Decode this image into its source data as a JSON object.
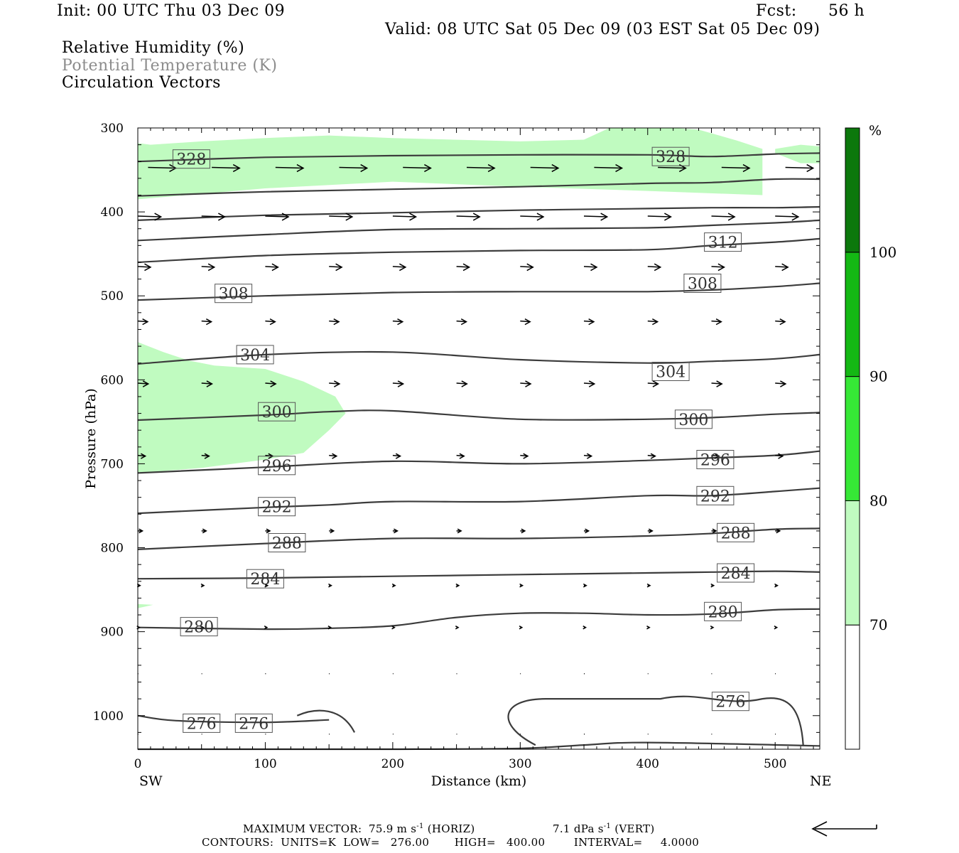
{
  "header": {
    "init": "Init: 00 UTC Thu 03 Dec 09",
    "fcst_label": "Fcst:",
    "fcst_value": "56 h",
    "valid": "Valid: 08 UTC Sat 05 Dec 09 (03 EST Sat 05 Dec 09)"
  },
  "fields": {
    "rh": "Relative Humidity (%)",
    "theta": "Potential Temperature (K)",
    "vectors": "Circulation Vectors"
  },
  "footer": {
    "max_vector_label": "MAXIMUM VECTOR:",
    "max_vector_horiz": "75.9 m s",
    "horiz_tag": "(HORIZ)",
    "max_vector_vert": "7.1 dPa s",
    "vert_tag": "(VERT)",
    "exponent": "-1",
    "contours_line": "CONTOURS:  UNITS=K  LOW=   276.00       HIGH=   400.00        INTERVAL=     4.0000"
  },
  "colors": {
    "rh_70": "#c0fbc0",
    "rh_80": "#36e836",
    "rh_90": "#14b814",
    "rh_100": "#0c780c",
    "contour": "#3c3c3c"
  },
  "chart_data": {
    "type": "cross-section",
    "xlabel": "Distance (km)",
    "ylabel": "Pressure (hPa)",
    "xlim": [
      0,
      535
    ],
    "ylim": [
      1040,
      300
    ],
    "y_scale": "linear (pressure, inverted)",
    "x_ticks": [
      0,
      100,
      200,
      300,
      400,
      500
    ],
    "y_ticks": [
      300,
      400,
      500,
      600,
      700,
      800,
      900,
      1000
    ],
    "x_end_labels": {
      "left": "SW",
      "right": "NE"
    },
    "colorbar": {
      "unit_label": "%",
      "levels": [
        70,
        80,
        90,
        100
      ],
      "colors": [
        "#ffffff",
        "#c0fbc0",
        "#36e836",
        "#14b814",
        "#0c780c"
      ]
    },
    "theta_contours": [
      {
        "value": 276,
        "label": "276",
        "points": [
          [
            0,
            1040
          ],
          [
            100,
            1040
          ],
          [
            200,
            1040
          ],
          [
            300,
            1039
          ],
          [
            350,
            1035
          ],
          [
            400,
            1032
          ],
          [
            535,
            1036
          ]
        ]
      },
      {
        "value": 276,
        "label": "276",
        "points": [
          [
            0,
            1000
          ],
          [
            30,
            1006
          ],
          [
            100,
            1008
          ],
          [
            150,
            1005
          ]
        ]
      },
      {
        "value": 280,
        "label": "280",
        "points": [
          [
            0,
            895
          ],
          [
            100,
            897
          ],
          [
            150,
            896
          ],
          [
            200,
            893
          ],
          [
            250,
            883
          ],
          [
            300,
            878
          ],
          [
            350,
            878
          ],
          [
            400,
            880
          ],
          [
            450,
            879
          ],
          [
            500,
            874
          ],
          [
            535,
            873
          ]
        ]
      },
      {
        "value": 284,
        "label": "284",
        "points": [
          [
            0,
            837
          ],
          [
            100,
            836
          ],
          [
            200,
            834
          ],
          [
            300,
            832
          ],
          [
            400,
            830
          ],
          [
            450,
            829
          ],
          [
            500,
            828
          ],
          [
            535,
            829
          ]
        ]
      },
      {
        "value": 288,
        "label": "288",
        "points": [
          [
            0,
            802
          ],
          [
            100,
            795
          ],
          [
            200,
            789
          ],
          [
            300,
            789
          ],
          [
            400,
            786
          ],
          [
            450,
            783
          ],
          [
            500,
            778
          ],
          [
            535,
            777
          ]
        ]
      },
      {
        "value": 292,
        "label": "292",
        "points": [
          [
            0,
            759
          ],
          [
            100,
            752
          ],
          [
            150,
            749
          ],
          [
            200,
            745
          ],
          [
            300,
            745
          ],
          [
            400,
            738
          ],
          [
            450,
            738
          ],
          [
            500,
            733
          ],
          [
            535,
            729
          ]
        ]
      },
      {
        "value": 296,
        "label": "296",
        "points": [
          [
            0,
            711
          ],
          [
            100,
            704
          ],
          [
            200,
            697
          ],
          [
            300,
            700
          ],
          [
            400,
            696
          ],
          [
            450,
            693
          ],
          [
            500,
            690
          ],
          [
            535,
            685
          ]
        ]
      },
      {
        "value": 300,
        "label": "300",
        "points": [
          [
            0,
            648
          ],
          [
            100,
            642
          ],
          [
            150,
            638
          ],
          [
            200,
            637
          ],
          [
            300,
            647
          ],
          [
            400,
            647
          ],
          [
            450,
            645
          ],
          [
            500,
            641
          ],
          [
            535,
            639
          ]
        ]
      },
      {
        "value": 304,
        "label": "304",
        "points": [
          [
            0,
            581
          ],
          [
            100,
            570
          ],
          [
            200,
            567
          ],
          [
            300,
            576
          ],
          [
            400,
            580
          ],
          [
            450,
            578
          ],
          [
            500,
            575
          ],
          [
            535,
            570
          ]
        ]
      },
      {
        "value": 308,
        "label": "308",
        "points": [
          [
            0,
            505
          ],
          [
            100,
            500
          ],
          [
            200,
            496
          ],
          [
            300,
            495
          ],
          [
            400,
            495
          ],
          [
            450,
            493
          ],
          [
            500,
            489
          ],
          [
            535,
            485
          ]
        ]
      },
      {
        "value": 312,
        "label": "312",
        "points": [
          [
            0,
            460
          ],
          [
            100,
            452
          ],
          [
            200,
            448
          ],
          [
            300,
            446
          ],
          [
            400,
            445
          ],
          [
            450,
            440
          ],
          [
            500,
            436
          ],
          [
            535,
            432
          ]
        ]
      },
      {
        "value": 316,
        "label": "",
        "points": [
          [
            0,
            434
          ],
          [
            100,
            427
          ],
          [
            200,
            421
          ],
          [
            300,
            420
          ],
          [
            400,
            419
          ],
          [
            450,
            416
          ],
          [
            500,
            413
          ],
          [
            535,
            410
          ]
        ]
      },
      {
        "value": 320,
        "label": "",
        "points": [
          [
            0,
            410
          ],
          [
            100,
            404
          ],
          [
            200,
            401
          ],
          [
            300,
            398
          ],
          [
            400,
            396
          ],
          [
            450,
            395
          ],
          [
            500,
            395
          ],
          [
            535,
            394
          ]
        ]
      },
      {
        "value": 324,
        "label": "",
        "points": [
          [
            0,
            381
          ],
          [
            100,
            376
          ],
          [
            200,
            373
          ],
          [
            300,
            370
          ],
          [
            400,
            366
          ],
          [
            450,
            365
          ],
          [
            500,
            361
          ],
          [
            535,
            361
          ]
        ]
      },
      {
        "value": 328,
        "label": "328",
        "points": [
          [
            0,
            340
          ],
          [
            100,
            335
          ],
          [
            200,
            333
          ],
          [
            300,
            332
          ],
          [
            400,
            332
          ],
          [
            450,
            334
          ],
          [
            500,
            331
          ],
          [
            535,
            330
          ]
        ]
      }
    ],
    "theta_labels": [
      {
        "value": "328",
        "x": 42,
        "p": 337
      },
      {
        "value": "328",
        "x": 418,
        "p": 334
      },
      {
        "value": "312",
        "x": 459,
        "p": 436
      },
      {
        "value": "308",
        "x": 75,
        "p": 497
      },
      {
        "value": "308",
        "x": 443,
        "p": 485
      },
      {
        "value": "304",
        "x": 92,
        "p": 570
      },
      {
        "value": "304",
        "x": 418,
        "p": 590
      },
      {
        "value": "300",
        "x": 109,
        "p": 638
      },
      {
        "value": "300",
        "x": 436,
        "p": 647
      },
      {
        "value": "296",
        "x": 109,
        "p": 702
      },
      {
        "value": "296",
        "x": 453,
        "p": 695
      },
      {
        "value": "292",
        "x": 109,
        "p": 751
      },
      {
        "value": "292",
        "x": 453,
        "p": 738
      },
      {
        "value": "288",
        "x": 117,
        "p": 794
      },
      {
        "value": "288",
        "x": 469,
        "p": 782
      },
      {
        "value": "284",
        "x": 100,
        "p": 837
      },
      {
        "value": "284",
        "x": 469,
        "p": 830
      },
      {
        "value": "280",
        "x": 48,
        "p": 894
      },
      {
        "value": "280",
        "x": 459,
        "p": 876
      },
      {
        "value": "276",
        "x": 50,
        "p": 1009
      },
      {
        "value": "276",
        "x": 91,
        "p": 1009
      },
      {
        "value": "276",
        "x": 465,
        "p": 983
      }
    ],
    "rh_regions": [
      {
        "level": "70-80",
        "points": [
          [
            0,
            318
          ],
          [
            10,
            320
          ],
          [
            50,
            316
          ],
          [
            100,
            312
          ],
          [
            150,
            309
          ],
          [
            200,
            312
          ],
          [
            300,
            316
          ],
          [
            350,
            314
          ],
          [
            370,
            300
          ],
          [
            420,
            300
          ],
          [
            440,
            302
          ],
          [
            470,
            315
          ],
          [
            490,
            325
          ],
          [
            490,
            380
          ],
          [
            400,
            375
          ],
          [
            300,
            370
          ],
          [
            200,
            364
          ],
          [
            100,
            372
          ],
          [
            0,
            385
          ]
        ]
      },
      {
        "level": "70-80",
        "points": [
          [
            500,
            325
          ],
          [
            520,
            320
          ],
          [
            535,
            322
          ],
          [
            535,
            342
          ],
          [
            520,
            342
          ],
          [
            500,
            330
          ]
        ]
      },
      {
        "level": "70-80",
        "points": [
          [
            0,
            555
          ],
          [
            20,
            567
          ],
          [
            40,
            577
          ],
          [
            60,
            583
          ],
          [
            100,
            587
          ],
          [
            130,
            602
          ],
          [
            155,
            620
          ],
          [
            163,
            640
          ],
          [
            150,
            660
          ],
          [
            130,
            687
          ],
          [
            100,
            695
          ],
          [
            50,
            705
          ],
          [
            0,
            711
          ]
        ]
      },
      {
        "level": "70-80",
        "points": [
          [
            0,
            867
          ],
          [
            12,
            868
          ],
          [
            0,
            872
          ]
        ]
      }
    ],
    "vectors_sample": [
      {
        "p": 347,
        "u": "strong westerly"
      },
      {
        "p": 405,
        "u": "strong westerly"
      },
      {
        "p": 465,
        "u": "moderate westerly"
      },
      {
        "p": 530,
        "u": "moderate westerly"
      },
      {
        "p": 605,
        "u": "moderate westerly"
      },
      {
        "p": 690,
        "u": "light westerly"
      },
      {
        "p": 780,
        "u": "light westerly"
      },
      {
        "p": 845,
        "u": "weak"
      },
      {
        "p": 895,
        "u": "weak"
      },
      {
        "p": 950,
        "u": "very weak"
      },
      {
        "p": 1020,
        "u": "very weak"
      }
    ]
  }
}
